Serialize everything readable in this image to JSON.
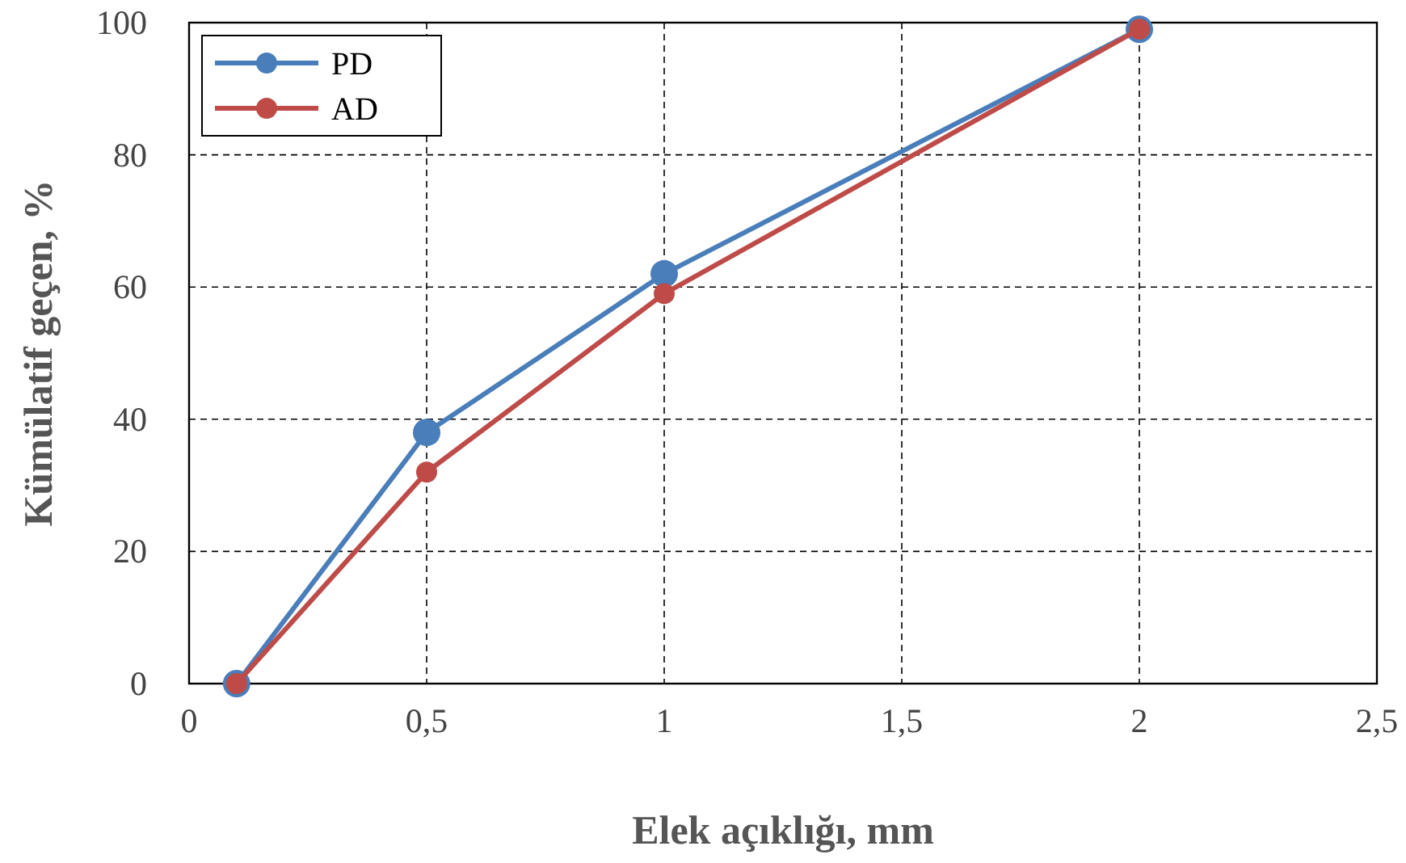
{
  "chart_data": {
    "type": "line",
    "xlabel": "Elek açıklığı, mm",
    "ylabel": "Kümülatif geçen, %",
    "xlim": [
      0,
      2.5
    ],
    "xticks": [
      0,
      {
        "value": 0.5,
        "label": "0,5"
      },
      1,
      {
        "value": 1.5,
        "label": "1,5"
      },
      2,
      {
        "value": 2.5,
        "label": "2,5"
      }
    ],
    "ylim": [
      0,
      100
    ],
    "yticks": [
      0,
      20,
      40,
      60,
      80,
      100
    ],
    "grid": true,
    "legend": "top left",
    "marker": "circle",
    "line_style": "solid",
    "x": [
      0.1,
      0.5,
      1,
      2
    ],
    "series": [
      {
        "name": "PD",
        "color": "#4a7ebb",
        "values": [
          0,
          38,
          62,
          99
        ]
      },
      {
        "name": "AD",
        "color": "#be4b48",
        "values": [
          0,
          32,
          59,
          99
        ]
      }
    ]
  }
}
